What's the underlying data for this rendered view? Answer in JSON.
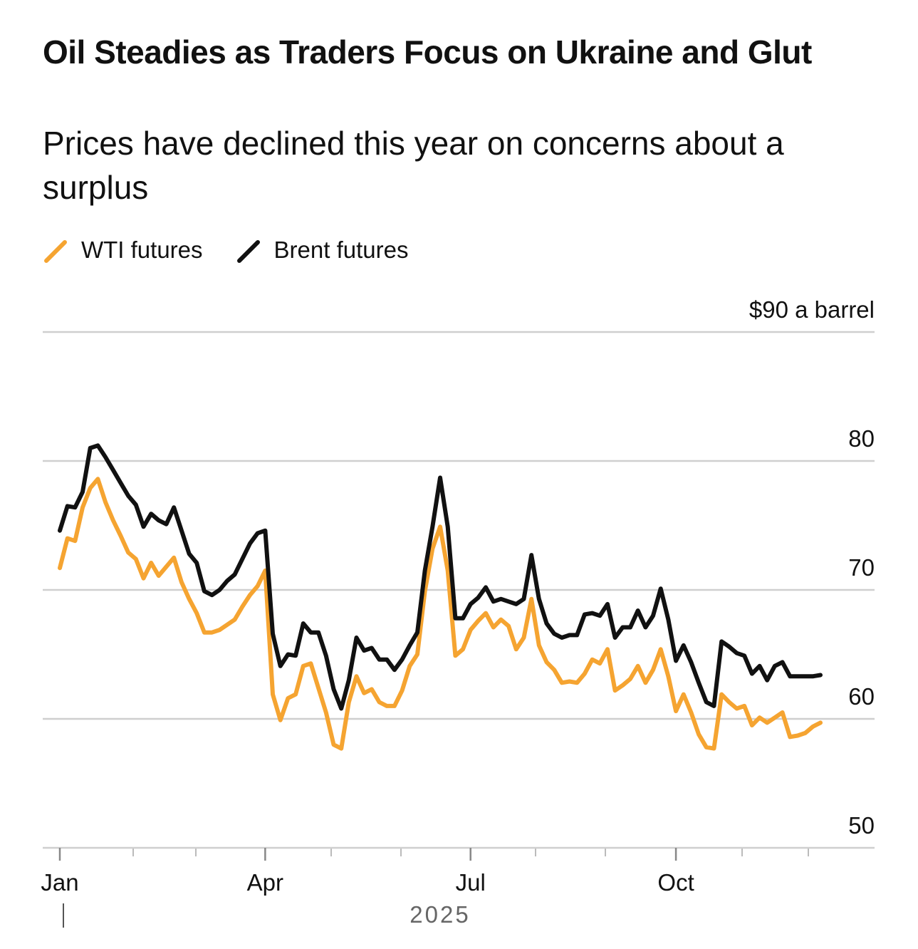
{
  "chart_data": {
    "type": "line",
    "title": "Oil Steadies as Traders Focus on Ukraine and Glut",
    "subtitle": "Prices have declined this year on concerns about a surplus",
    "x_label": "2025",
    "categories": [
      "Jan",
      null,
      null,
      null,
      null,
      null,
      null,
      null,
      null,
      null,
      null,
      null,
      null,
      null,
      null,
      null,
      null,
      null,
      null,
      null,
      null,
      null,
      null,
      null,
      null,
      null,
      null,
      "Apr",
      null,
      null,
      null,
      null,
      null,
      null,
      null,
      null,
      null,
      null,
      null,
      null,
      null,
      null,
      null,
      null,
      null,
      null,
      null,
      null,
      null,
      null,
      null,
      null,
      null,
      null,
      "Jul",
      null,
      null,
      null,
      null,
      null,
      null,
      null,
      null,
      null,
      null,
      null,
      null,
      null,
      null,
      null,
      null,
      null,
      null,
      null,
      null,
      null,
      null,
      null,
      null,
      null,
      null,
      "Oct",
      null,
      null,
      null,
      null,
      null,
      null,
      null,
      null,
      null,
      null,
      null,
      null,
      null,
      null,
      null,
      null,
      null,
      null,
      null
    ],
    "series": [
      {
        "name": "WTI futures",
        "color": "#f5a431",
        "values": [
          71.7,
          74.0,
          73.8,
          76.4,
          77.9,
          78.6,
          76.8,
          75.4,
          74.2,
          72.9,
          72.4,
          70.9,
          72.1,
          71.1,
          71.8,
          72.5,
          70.6,
          69.3,
          68.2,
          66.7,
          66.7,
          66.9,
          67.3,
          67.7,
          68.7,
          69.6,
          70.3,
          71.5,
          61.9,
          59.9,
          61.6,
          61.9,
          64.1,
          64.3,
          62.4,
          60.5,
          58.0,
          57.7,
          61.3,
          63.3,
          62.0,
          62.3,
          61.3,
          61.0,
          61.0,
          62.2,
          64.1,
          65.0,
          69.9,
          73.2,
          74.9,
          71.5,
          64.9,
          65.4,
          66.9,
          67.6,
          68.2,
          67.1,
          67.7,
          67.2,
          65.4,
          66.3,
          69.3,
          65.7,
          64.4,
          63.8,
          62.8,
          62.9,
          62.8,
          63.5,
          64.6,
          64.3,
          65.4,
          62.2,
          62.6,
          63.1,
          64.1,
          62.8,
          63.8,
          65.4,
          63.3,
          60.6,
          61.9,
          60.5,
          58.8,
          57.8,
          57.7,
          61.9,
          61.3,
          60.8,
          61.0,
          59.5,
          60.1,
          59.7,
          60.1,
          60.5,
          58.6,
          58.7,
          58.9,
          59.4,
          59.7
        ]
      },
      {
        "name": "Brent futures",
        "color": "#111111",
        "values": [
          74.6,
          76.5,
          76.4,
          77.6,
          81.0,
          81.2,
          80.3,
          79.3,
          78.3,
          77.3,
          76.6,
          74.9,
          75.9,
          75.4,
          75.1,
          76.4,
          74.6,
          72.8,
          72.1,
          69.9,
          69.6,
          70.0,
          70.7,
          71.2,
          72.4,
          73.6,
          74.4,
          74.6,
          66.6,
          64.1,
          65.0,
          64.9,
          67.4,
          66.7,
          66.7,
          64.9,
          62.3,
          60.8,
          63.0,
          66.3,
          65.3,
          65.5,
          64.6,
          64.6,
          63.8,
          64.6,
          65.7,
          66.7,
          71.5,
          74.9,
          78.7,
          74.9,
          67.8,
          67.8,
          68.9,
          69.4,
          70.2,
          69.1,
          69.3,
          69.1,
          68.9,
          69.3,
          72.7,
          69.3,
          67.4,
          66.6,
          66.3,
          66.5,
          66.5,
          68.1,
          68.2,
          68.0,
          68.9,
          66.3,
          67.1,
          67.1,
          68.4,
          67.1,
          68.0,
          70.1,
          67.7,
          64.5,
          65.7,
          64.4,
          62.8,
          61.3,
          61.0,
          66.0,
          65.6,
          65.1,
          64.9,
          63.5,
          64.1,
          63.0,
          64.1,
          64.4,
          63.3,
          63.3,
          63.3,
          63.3,
          63.4
        ]
      }
    ],
    "ylim": [
      50,
      90
    ],
    "yticks": [
      {
        "value": 90,
        "label": "$90 a barrel"
      },
      80,
      70,
      60,
      50
    ],
    "grid": true
  }
}
